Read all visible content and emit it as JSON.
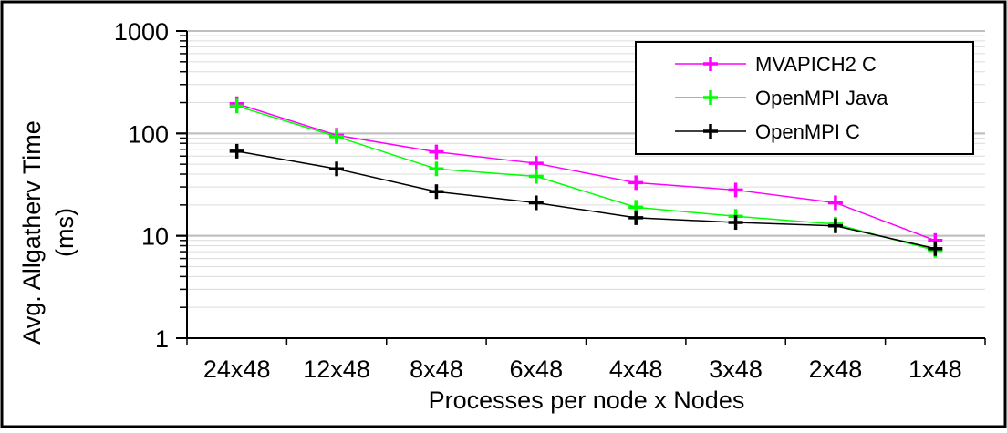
{
  "chart_data": {
    "type": "line",
    "title": "",
    "xlabel": "Processes per node x Nodes",
    "ylabel": [
      "Avg. Allgatherv Time",
      "(ms)"
    ],
    "yscale": "log",
    "ylim": [
      1,
      1000
    ],
    "yticks": [
      "1",
      "10",
      "100",
      "1000"
    ],
    "grid": true,
    "legend_position": "top-right",
    "categories": [
      "24x48",
      "12x48",
      "8x48",
      "6x48",
      "4x48",
      "3x48",
      "2x48",
      "1x48"
    ],
    "series": [
      {
        "name": "MVAPICH2 C",
        "color": "#ff00ff",
        "values": [
          195,
          96,
          66,
          51,
          33,
          28,
          21,
          9
        ]
      },
      {
        "name": "OpenMPI Java",
        "color": "#00ff00",
        "values": [
          185,
          93,
          45,
          38,
          19,
          15.5,
          13,
          7.2
        ]
      },
      {
        "name": "OpenMPI C",
        "color": "#000000",
        "values": [
          67,
          45,
          27,
          21,
          15,
          13.5,
          12.5,
          7.5
        ]
      }
    ]
  }
}
